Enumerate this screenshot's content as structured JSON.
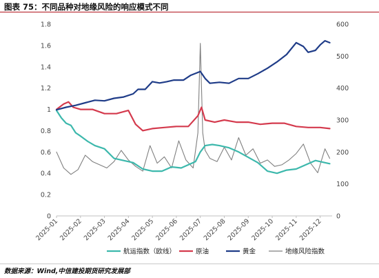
{
  "header": {
    "title": "图表 75：不同品种对地缘风险的响应模式不同"
  },
  "footer": {
    "source": "数据来源：Wind,中信建投期货研究发展部"
  },
  "colors": {
    "freight": "#3cb8ac",
    "oil": "#d43a4d",
    "gold": "#1f3c88",
    "geo": "#7f7f7f",
    "title_rule": "#b0101a"
  },
  "chart_data": {
    "type": "line",
    "title": "",
    "x_tick_labels": [
      "2025-01",
      "2025-02",
      "2025-03",
      "2025-04",
      "2025-05",
      "2025-06",
      "2025-07",
      "2025-08",
      "2025-09",
      "2025-10",
      "2025-11",
      "2025-12"
    ],
    "left_axis": {
      "ylim": [
        0,
        1.8
      ],
      "ticks": [
        "0",
        "0.2",
        "0.4",
        "0.6",
        "0.8",
        "1",
        "1.2",
        "1.4",
        "1.6",
        "1.8"
      ]
    },
    "right_axis": {
      "ylim": [
        0,
        600
      ],
      "ticks": [
        "0",
        "100",
        "200",
        "300",
        "400",
        "500",
        "600"
      ]
    },
    "legend": {
      "position": "bottom",
      "entries": [
        "航运指数（欧线）",
        "原油",
        "黄金",
        "地缘风险指数"
      ]
    },
    "series": [
      {
        "name": "航运指数（欧线）",
        "axis": "left",
        "x": [
          0,
          0.2,
          0.4,
          0.6,
          0.8,
          1.0,
          1.3,
          1.6,
          2.0,
          2.4,
          2.8,
          3.2,
          3.6,
          4.0,
          4.4,
          4.8,
          5.2,
          5.5,
          5.8,
          6.0,
          6.2,
          6.5,
          6.8,
          7.2,
          7.6,
          8.0,
          8.4,
          8.8,
          9.2,
          9.6,
          10.0,
          10.4,
          10.8,
          11.2,
          11.4
        ],
        "values": [
          0.99,
          0.92,
          0.87,
          0.85,
          0.78,
          0.75,
          0.7,
          0.66,
          0.63,
          0.54,
          0.52,
          0.5,
          0.44,
          0.42,
          0.42,
          0.46,
          0.45,
          0.48,
          0.51,
          0.6,
          0.66,
          0.67,
          0.66,
          0.64,
          0.6,
          0.55,
          0.5,
          0.42,
          0.4,
          0.43,
          0.44,
          0.48,
          0.52,
          0.5,
          0.49
        ]
      },
      {
        "name": "原油",
        "axis": "left",
        "x": [
          0,
          0.3,
          0.5,
          0.7,
          1.0,
          1.5,
          2.0,
          2.5,
          3.0,
          3.3,
          3.6,
          4.0,
          4.5,
          5.0,
          5.5,
          5.9,
          6.05,
          6.2,
          6.6,
          7.0,
          7.5,
          8.0,
          8.5,
          9.0,
          9.5,
          10.0,
          10.5,
          11.0,
          11.4
        ],
        "values": [
          1.0,
          1.05,
          1.07,
          1.02,
          1.0,
          1.0,
          0.96,
          0.96,
          0.99,
          0.86,
          0.8,
          0.82,
          0.83,
          0.84,
          0.84,
          0.94,
          1.02,
          0.9,
          0.88,
          0.9,
          0.88,
          0.88,
          0.86,
          0.87,
          0.87,
          0.84,
          0.83,
          0.83,
          0.82
        ]
      },
      {
        "name": "黄金",
        "axis": "right",
        "x": [
          0,
          0.4,
          0.8,
          1.2,
          1.6,
          2.0,
          2.4,
          2.8,
          3.2,
          3.4,
          3.7,
          4.0,
          4.3,
          4.6,
          4.9,
          5.3,
          5.6,
          6.0,
          6.2,
          6.4,
          6.8,
          7.2,
          7.6,
          8.0,
          8.4,
          8.8,
          9.2,
          9.6,
          10.0,
          10.3,
          10.5,
          10.8,
          11.0,
          11.2,
          11.4
        ],
        "values": [
          332,
          340,
          346,
          354,
          362,
          360,
          368,
          372,
          382,
          396,
          396,
          420,
          416,
          420,
          425,
          425,
          440,
          452,
          430,
          415,
          418,
          415,
          430,
          430,
          445,
          462,
          482,
          505,
          542,
          530,
          512,
          518,
          535,
          548,
          542
        ]
      },
      {
        "name": "地缘风险指数",
        "axis": "right",
        "x": [
          0,
          0.3,
          0.6,
          0.9,
          1.2,
          1.5,
          1.8,
          2.1,
          2.4,
          2.7,
          3.0,
          3.3,
          3.6,
          3.9,
          4.2,
          4.5,
          4.8,
          5.1,
          5.4,
          5.7,
          5.9,
          6.0,
          6.1,
          6.2,
          6.4,
          6.7,
          7.0,
          7.3,
          7.6,
          7.9,
          8.2,
          8.5,
          8.8,
          9.1,
          9.4,
          9.7,
          10.0,
          10.3,
          10.6,
          10.9,
          11.2,
          11.4
        ],
        "values": [
          200,
          150,
          130,
          145,
          190,
          170,
          160,
          150,
          170,
          205,
          175,
          155,
          140,
          220,
          165,
          185,
          150,
          235,
          175,
          150,
          260,
          540,
          260,
          205,
          180,
          170,
          215,
          175,
          245,
          190,
          210,
          165,
          175,
          155,
          160,
          175,
          195,
          225,
          165,
          135,
          210,
          180
        ]
      }
    ]
  }
}
